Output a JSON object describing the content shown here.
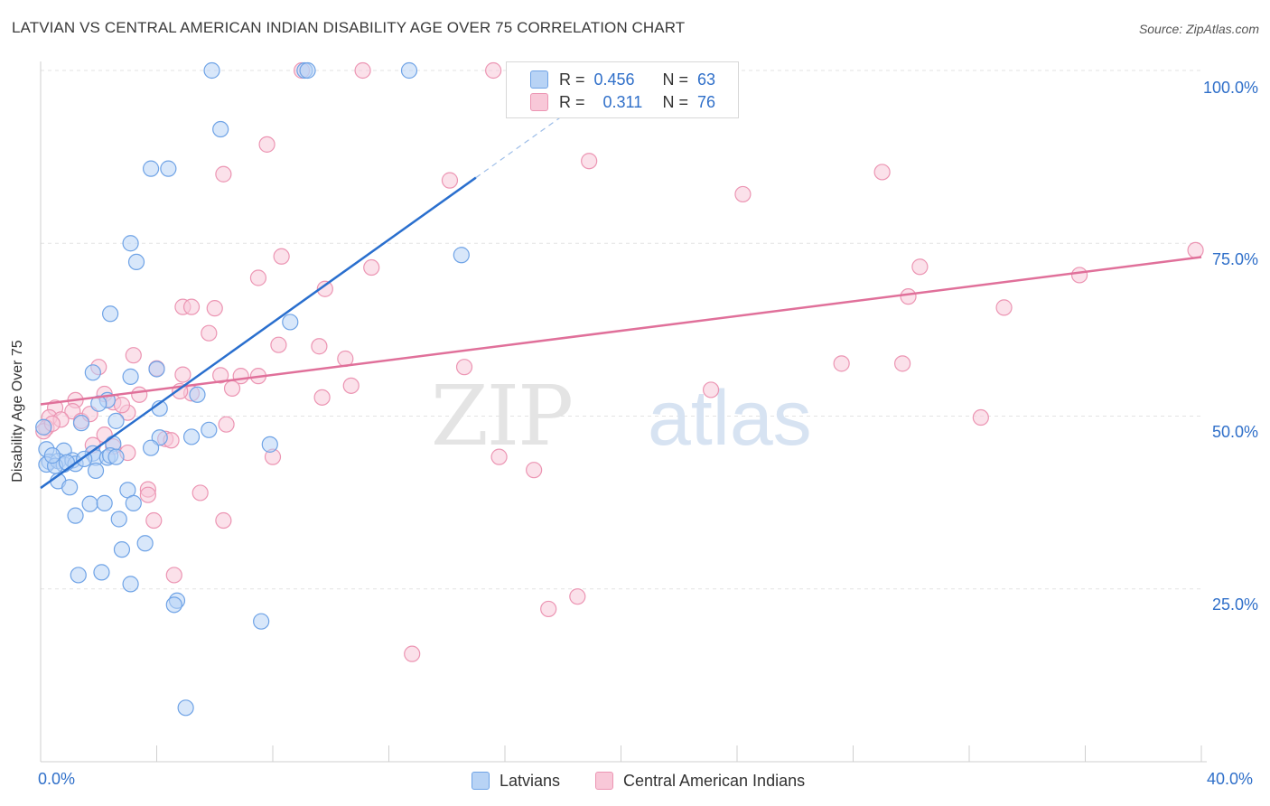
{
  "title": "LATVIAN VS CENTRAL AMERICAN INDIAN DISABILITY AGE OVER 75 CORRELATION CHART",
  "source": "Source: ZipAtlas.com",
  "watermark": {
    "zip": "ZIP",
    "atlas": "atlas"
  },
  "legend_top": {
    "r_label": "R =",
    "n_label": "N =",
    "series": [
      {
        "r": "0.456",
        "n": "63"
      },
      {
        "r": "0.311",
        "n": "76"
      }
    ]
  },
  "chart_data": {
    "type": "scatter",
    "title": "LATVIAN VS CENTRAL AMERICAN INDIAN DISABILITY AGE OVER 75 CORRELATION CHART",
    "xlabel": "",
    "ylabel": "Disability Age Over 75",
    "xlim": [
      0,
      40
    ],
    "ylim": [
      0,
      105
    ],
    "x_tick_labels": [
      "0.0%",
      "40.0%"
    ],
    "y_ticks": [
      25,
      50,
      75,
      100
    ],
    "y_tick_labels": [
      "25.0%",
      "50.0%",
      "75.0%",
      "100.0%"
    ],
    "grid": true,
    "legend_position": "bottom",
    "series": [
      {
        "name": "Latvians",
        "color": "#6fa3e6",
        "fill": "#b8d3f5",
        "line_color": "#2a6fce",
        "trend": {
          "x0": 0,
          "y0": 39.6,
          "x1": 15.0,
          "y1": 84.5,
          "dash_to_x": 19.0
        },
        "points": [
          [
            5.9,
            100
          ],
          [
            9.1,
            100
          ],
          [
            9.2,
            100
          ],
          [
            12.7,
            100
          ],
          [
            6.2,
            91.5
          ],
          [
            3.8,
            85.8
          ],
          [
            4.4,
            85.8
          ],
          [
            3.1,
            75
          ],
          [
            3.3,
            72.3
          ],
          [
            14.5,
            73.3
          ],
          [
            2.4,
            64.8
          ],
          [
            8.6,
            63.6
          ],
          [
            1.8,
            56.3
          ],
          [
            3.1,
            55.7
          ],
          [
            4.0,
            56.8
          ],
          [
            2.3,
            52.3
          ],
          [
            2.0,
            51.8
          ],
          [
            5.4,
            53.1
          ],
          [
            0.1,
            48.4
          ],
          [
            1.4,
            49.0
          ],
          [
            2.6,
            49.3
          ],
          [
            4.1,
            51.1
          ],
          [
            5.8,
            48.0
          ],
          [
            4.1,
            46.9
          ],
          [
            2.5,
            46.0
          ],
          [
            3.8,
            45.4
          ],
          [
            7.9,
            45.9
          ],
          [
            0.2,
            45.2
          ],
          [
            0.8,
            45.0
          ],
          [
            1.8,
            44.6
          ],
          [
            1.9,
            44.0
          ],
          [
            2.3,
            44.0
          ],
          [
            2.4,
            44.3
          ],
          [
            0.3,
            43.4
          ],
          [
            0.2,
            43.0
          ],
          [
            0.6,
            43.5
          ],
          [
            0.8,
            43.0
          ],
          [
            1.1,
            43.6
          ],
          [
            1.2,
            43.1
          ],
          [
            0.5,
            42.8
          ],
          [
            1.9,
            42.1
          ],
          [
            0.6,
            40.6
          ],
          [
            1.0,
            39.7
          ],
          [
            3.0,
            39.3
          ],
          [
            1.7,
            37.3
          ],
          [
            2.2,
            37.4
          ],
          [
            3.2,
            37.4
          ],
          [
            1.2,
            35.6
          ],
          [
            2.7,
            35.1
          ],
          [
            3.6,
            31.6
          ],
          [
            2.8,
            30.7
          ],
          [
            1.3,
            27.0
          ],
          [
            2.1,
            27.4
          ],
          [
            3.1,
            25.7
          ],
          [
            4.7,
            23.3
          ],
          [
            4.6,
            22.7
          ],
          [
            7.6,
            20.3
          ],
          [
            5.0,
            7.8
          ],
          [
            5.2,
            47.0
          ],
          [
            0.4,
            44.3
          ],
          [
            1.5,
            43.8
          ],
          [
            2.6,
            44.1
          ],
          [
            0.9,
            43.3
          ]
        ]
      },
      {
        "name": "Central American Indians",
        "color": "#ec95b3",
        "fill": "#f8c8d8",
        "line_color": "#e0709a",
        "trend": {
          "x0": 0,
          "y0": 51.7,
          "x1": 40.0,
          "y1": 73.0
        },
        "points": [
          [
            9.0,
            100
          ],
          [
            11.1,
            100
          ],
          [
            15.6,
            100
          ],
          [
            7.8,
            89.3
          ],
          [
            14.1,
            84.1
          ],
          [
            6.3,
            85.0
          ],
          [
            18.9,
            86.9
          ],
          [
            24.2,
            82.1
          ],
          [
            29.0,
            85.3
          ],
          [
            39.8,
            74.0
          ],
          [
            8.3,
            73.1
          ],
          [
            7.5,
            70.0
          ],
          [
            11.4,
            71.5
          ],
          [
            30.3,
            71.6
          ],
          [
            35.8,
            70.4
          ],
          [
            9.8,
            68.4
          ],
          [
            29.9,
            67.3
          ],
          [
            33.2,
            65.7
          ],
          [
            4.9,
            65.8
          ],
          [
            5.2,
            65.8
          ],
          [
            6.0,
            65.6
          ],
          [
            5.8,
            62.0
          ],
          [
            8.2,
            60.3
          ],
          [
            9.6,
            60.1
          ],
          [
            3.2,
            58.8
          ],
          [
            10.5,
            58.3
          ],
          [
            4.0,
            56.9
          ],
          [
            4.9,
            56.0
          ],
          [
            6.2,
            55.9
          ],
          [
            6.9,
            55.8
          ],
          [
            7.5,
            55.8
          ],
          [
            14.6,
            57.1
          ],
          [
            27.6,
            57.6
          ],
          [
            29.7,
            57.6
          ],
          [
            2.0,
            57.1
          ],
          [
            6.6,
            54.0
          ],
          [
            10.7,
            54.4
          ],
          [
            2.2,
            53.2
          ],
          [
            3.4,
            53.1
          ],
          [
            5.2,
            53.3
          ],
          [
            9.7,
            52.7
          ],
          [
            23.1,
            53.8
          ],
          [
            1.2,
            52.3
          ],
          [
            2.5,
            52.0
          ],
          [
            3.0,
            50.5
          ],
          [
            0.5,
            51.2
          ],
          [
            1.1,
            50.7
          ],
          [
            0.3,
            49.8
          ],
          [
            0.7,
            49.5
          ],
          [
            1.4,
            49.3
          ],
          [
            0.2,
            48.3
          ],
          [
            6.4,
            48.8
          ],
          [
            32.4,
            49.8
          ],
          [
            2.2,
            47.3
          ],
          [
            4.3,
            46.7
          ],
          [
            4.5,
            46.5
          ],
          [
            2.5,
            45.6
          ],
          [
            1.8,
            45.8
          ],
          [
            3.0,
            44.7
          ],
          [
            8.0,
            44.1
          ],
          [
            15.8,
            44.1
          ],
          [
            17.0,
            42.2
          ],
          [
            3.7,
            39.4
          ],
          [
            3.7,
            38.6
          ],
          [
            5.5,
            38.9
          ],
          [
            3.9,
            34.9
          ],
          [
            6.3,
            34.9
          ],
          [
            4.6,
            27.0
          ],
          [
            18.5,
            23.9
          ],
          [
            17.5,
            22.1
          ],
          [
            12.8,
            15.6
          ],
          [
            0.1,
            47.8
          ],
          [
            4.8,
            53.6
          ],
          [
            2.8,
            51.6
          ],
          [
            1.7,
            50.3
          ],
          [
            0.4,
            48.9
          ]
        ]
      }
    ]
  }
}
